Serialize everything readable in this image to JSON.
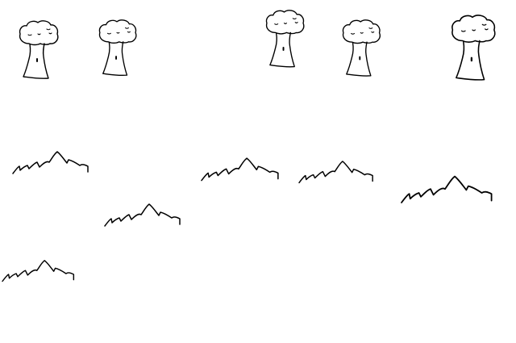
{
  "scene": {
    "background": "#ffffff",
    "ink": "#000000",
    "trees": [
      {
        "icon": "tree-icon"
      },
      {
        "icon": "tree-icon"
      },
      {
        "icon": "tree-icon"
      },
      {
        "icon": "tree-icon"
      },
      {
        "icon": "tree-icon"
      }
    ],
    "grass": [
      {
        "icon": "grass-icon"
      },
      {
        "icon": "grass-icon"
      },
      {
        "icon": "grass-icon"
      },
      {
        "icon": "grass-icon"
      },
      {
        "icon": "grass-icon"
      },
      {
        "icon": "grass-icon"
      }
    ]
  }
}
